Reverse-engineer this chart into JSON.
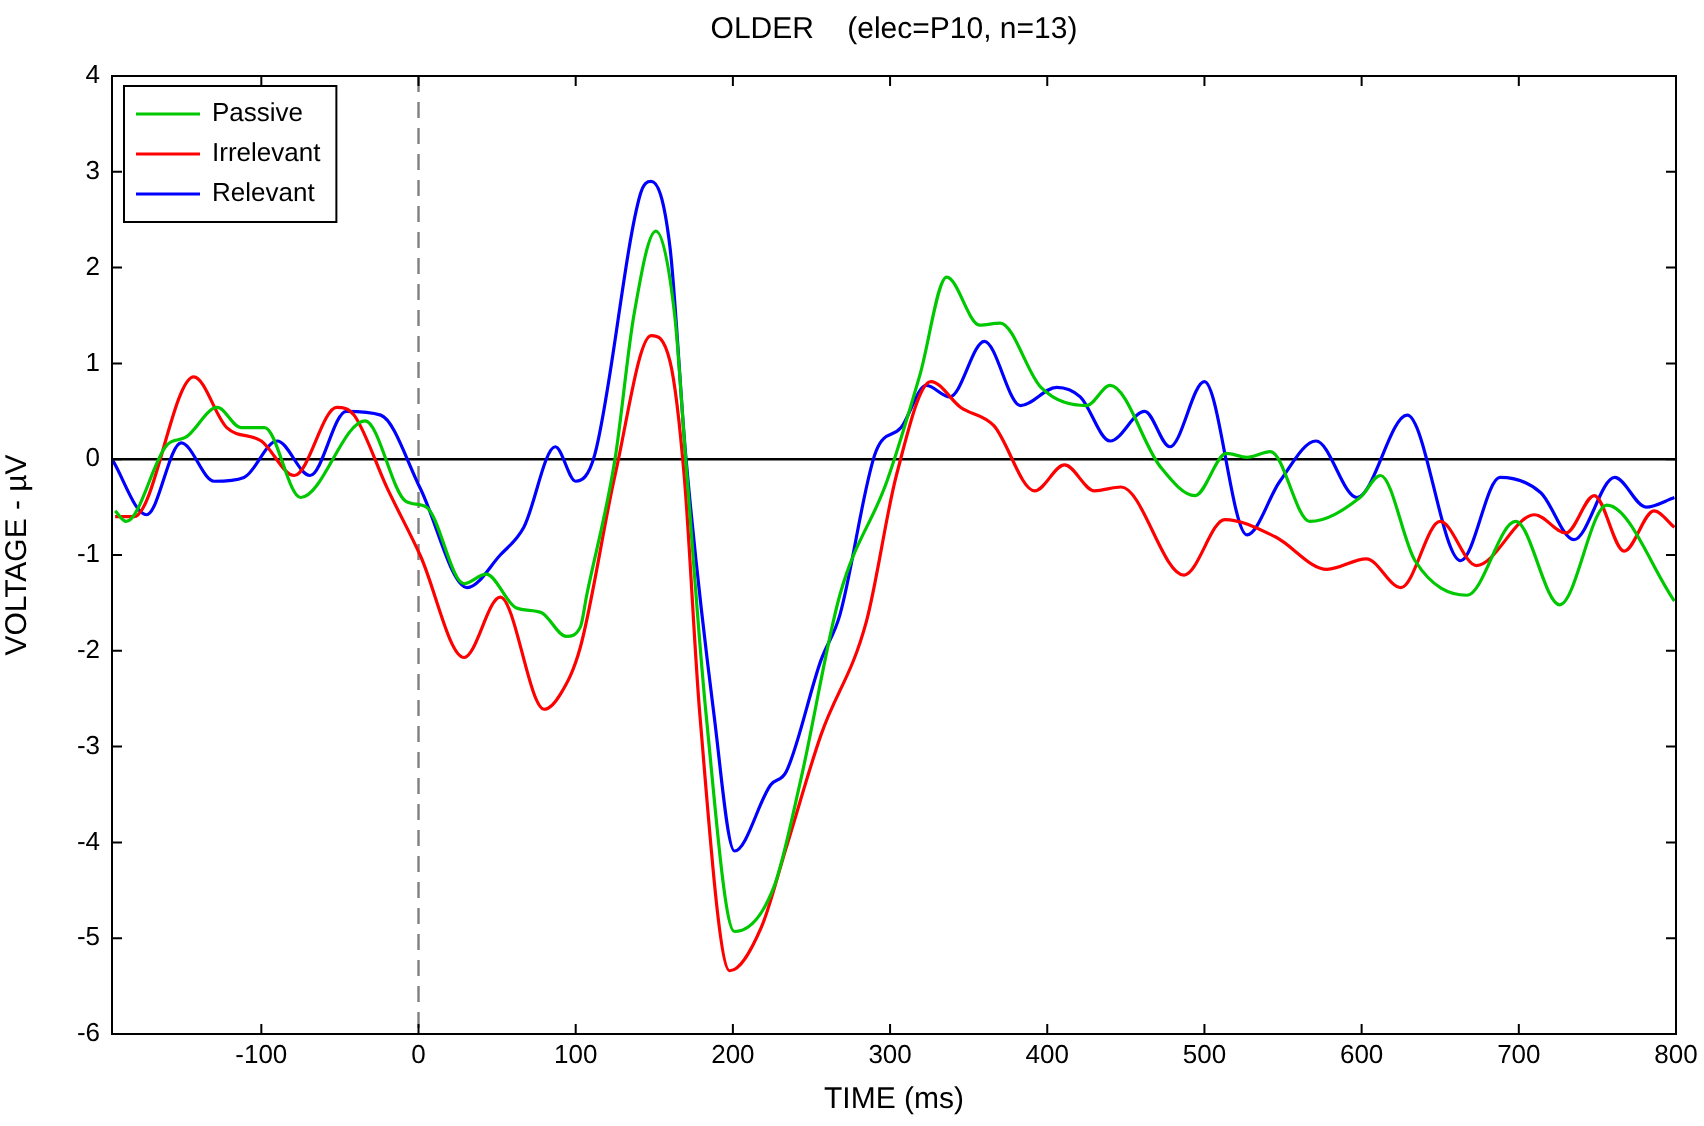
{
  "chart_data": {
    "type": "line",
    "title": "OLDER    (elec=P10, n=13)",
    "xlabel": "TIME (ms)",
    "ylabel": "VOLTAGE - µV",
    "xlim": [
      -195,
      800
    ],
    "ylim": [
      -6,
      4
    ],
    "xticks": [
      -100,
      0,
      100,
      200,
      300,
      400,
      500,
      600,
      700,
      800
    ],
    "yticks": [
      -6,
      -5,
      -4,
      -3,
      -2,
      -1,
      0,
      1,
      2,
      3,
      4
    ],
    "grid": false,
    "legend": "top left",
    "marker": "none",
    "line_style": "solid",
    "ref_lines": [
      {
        "axis": "y",
        "value": 0,
        "color": "#000000",
        "line_style": "solid"
      },
      {
        "axis": "x",
        "value": 0,
        "color": "#808080",
        "line_style": "dashed"
      }
    ],
    "series": [
      {
        "name": "Passive",
        "color": "#00c800",
        "x": [
          -193,
          -186,
          -160,
          -148,
          -128,
          -113,
          -98,
          -75,
          -34,
          -8,
          5,
          29,
          43,
          62,
          78,
          94,
          103,
          107,
          125,
          137,
          151,
          163,
          170,
          183,
          201,
          226,
          243,
          268,
          298,
          319,
          336,
          357,
          370,
          396,
          425,
          440,
          472,
          494,
          514,
          527,
          542,
          567,
          599,
          612,
          634,
          667,
          698,
          726,
          756,
          799
        ],
        "values": [
          -0.54,
          -0.65,
          0.15,
          0.23,
          0.54,
          0.33,
          0.33,
          -0.4,
          0.4,
          -0.44,
          -0.5,
          -1.3,
          -1.2,
          -1.55,
          -1.6,
          -1.85,
          -1.75,
          -1.42,
          0.0,
          1.5,
          2.38,
          1.5,
          0.0,
          -2.67,
          -4.93,
          -4.47,
          -3.36,
          -1.42,
          -0.23,
          0.88,
          1.9,
          1.4,
          1.42,
          0.75,
          0.56,
          0.77,
          -0.08,
          -0.38,
          0.06,
          0.02,
          0.08,
          -0.65,
          -0.4,
          -0.17,
          -1.06,
          -1.42,
          -0.65,
          -1.52,
          -0.48,
          -1.48
        ]
      },
      {
        "name": "Irrelevant",
        "color": "#ff0000",
        "x": [
          -193,
          -181,
          -143,
          -122,
          -100,
          -79,
          -52,
          -41,
          -20,
          1,
          29,
          52,
          80,
          90,
          103,
          125,
          148,
          160,
          169,
          179,
          198,
          218,
          234,
          256,
          285,
          304,
          326,
          345,
          366,
          392,
          411,
          430,
          447,
          487,
          513,
          545,
          578,
          603,
          625,
          650,
          673,
          710,
          730,
          748,
          767,
          786,
          799
        ],
        "values": [
          -0.6,
          -0.6,
          0.86,
          0.33,
          0.19,
          -0.17,
          0.54,
          0.46,
          -0.3,
          -1.0,
          -2.07,
          -1.44,
          -2.61,
          -2.46,
          -1.96,
          -0.17,
          1.29,
          1.02,
          -0.17,
          -2.67,
          -5.34,
          -4.89,
          -4.05,
          -2.88,
          -1.69,
          -0.17,
          0.81,
          0.54,
          0.35,
          -0.33,
          -0.06,
          -0.33,
          -0.29,
          -1.21,
          -0.63,
          -0.81,
          -1.15,
          -1.04,
          -1.34,
          -0.65,
          -1.11,
          -0.58,
          -0.77,
          -0.38,
          -0.96,
          -0.54,
          -0.71
        ]
      },
      {
        "name": "Relevant",
        "color": "#0000ff",
        "x": [
          -195,
          -173,
          -151,
          -130,
          -111,
          -90,
          -69,
          -46,
          -24,
          1,
          31,
          52,
          67,
          87,
          100,
          112,
          141,
          148,
          160,
          170,
          188,
          201,
          224,
          234,
          256,
          268,
          291,
          307,
          323,
          338,
          360,
          383,
          406,
          421,
          440,
          462,
          478,
          500,
          527,
          548,
          571,
          597,
          629,
          663,
          688,
          714,
          735,
          761,
          781,
          799
        ],
        "values": [
          0.0,
          -0.58,
          0.17,
          -0.23,
          -0.19,
          0.19,
          -0.17,
          0.5,
          0.46,
          -0.3,
          -1.34,
          -1.0,
          -0.71,
          0.13,
          -0.23,
          0.04,
          2.76,
          2.9,
          2.21,
          0.04,
          -2.67,
          -4.09,
          -3.4,
          -3.26,
          -2.1,
          -1.63,
          0.08,
          0.33,
          0.77,
          0.65,
          1.23,
          0.56,
          0.75,
          0.65,
          0.19,
          0.5,
          0.13,
          0.81,
          -0.79,
          -0.23,
          0.19,
          -0.4,
          0.46,
          -1.06,
          -0.19,
          -0.35,
          -0.84,
          -0.19,
          -0.5,
          -0.4
        ]
      }
    ]
  }
}
